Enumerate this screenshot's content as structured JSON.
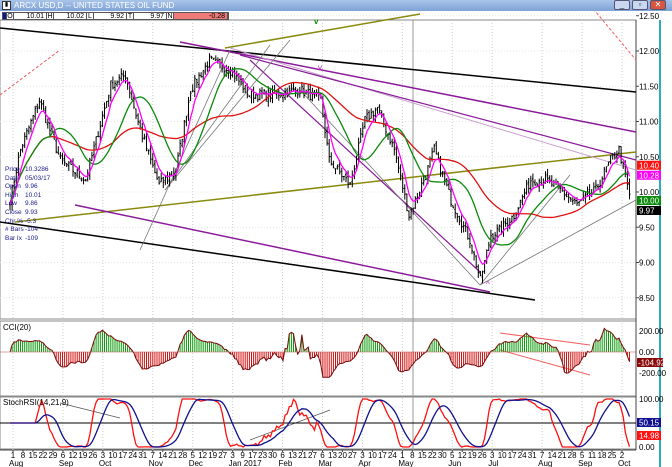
{
  "window": {
    "title": "ARCX USD,D -- UNITED STATES OIL FUND",
    "minimize_icon": "minimize-icon",
    "restore_icon": "restore-icon",
    "close_icon": "close-icon"
  },
  "toolbar": {
    "fields": [
      {
        "key": "O",
        "value": "10.01"
      },
      {
        "key": "H",
        "value": "10.02"
      },
      {
        "key": "L",
        "value": "9.92"
      },
      {
        "key": "T",
        "value": "9.97"
      },
      {
        "key": "N",
        "value": "-0.28"
      }
    ]
  },
  "info_box": [
    {
      "label": "Price",
      "value": "10.3286"
    },
    {
      "label": "Date",
      "value": "05/03/17"
    },
    {
      "label": "Open",
      "value": "9.96"
    },
    {
      "label": "High",
      "value": "10.01"
    },
    {
      "label": "Low",
      "value": "9.86"
    },
    {
      "label": "Close",
      "value": "9.93"
    },
    {
      "label": "Chr %",
      "value": "-5.3"
    },
    {
      "label": "# Bars",
      "value": "-104"
    },
    {
      "label": "Bar Ix",
      "value": "-109"
    }
  ],
  "colors": {
    "ma_long": "#e01010",
    "ma_mid": "#0a8a0a",
    "ma_short": "#ff00ff",
    "cci_pos": "#0a9a0a",
    "cci_neg": "#d01010",
    "stoch_k": "#ff1010",
    "stoch_d": "#101090",
    "channel": "#000000",
    "olive": "#8a8a10",
    "purple": "#8a1a9a"
  },
  "chart_data": {
    "type": "line",
    "title": "ARCX USD,D -- UNITED STATES OIL FUND",
    "price_axis": {
      "ticks": [
        "12.50",
        "12.00",
        "11.50",
        "11.00",
        "10.50",
        "10.00",
        "9.50",
        "9.00",
        "8.50"
      ],
      "ylim": [
        8.35,
        12.55
      ]
    },
    "price_path": [
      [
        0,
        9.89
      ],
      [
        5,
        10.6
      ],
      [
        14,
        11.3
      ],
      [
        24,
        10.45
      ],
      [
        36,
        10.17
      ],
      [
        48,
        11.52
      ],
      [
        55,
        11.66
      ],
      [
        62,
        10.88
      ],
      [
        71,
        10.1
      ],
      [
        79,
        10.31
      ],
      [
        86,
        11.45
      ],
      [
        95,
        11.87
      ],
      [
        105,
        11.73
      ],
      [
        114,
        11.38
      ],
      [
        124,
        11.38
      ],
      [
        138,
        11.45
      ],
      [
        148,
        11.3
      ],
      [
        152,
        10.45
      ],
      [
        162,
        10.1
      ],
      [
        169,
        11.02
      ],
      [
        175,
        11.19
      ],
      [
        183,
        10.6
      ],
      [
        190,
        9.67
      ],
      [
        198,
        10.24
      ],
      [
        202,
        10.6
      ],
      [
        210,
        9.89
      ],
      [
        219,
        9.32
      ],
      [
        224,
        8.75
      ],
      [
        229,
        9.39
      ],
      [
        233,
        9.46
      ],
      [
        240,
        9.67
      ],
      [
        248,
        10.17
      ],
      [
        255,
        10.17
      ],
      [
        262,
        10.03
      ],
      [
        270,
        9.82
      ],
      [
        279,
        10.03
      ],
      [
        286,
        10.45
      ],
      [
        290,
        10.6
      ],
      [
        295,
        9.97
      ]
    ],
    "price_tags": [
      {
        "value": "10.40",
        "series": "ma_long"
      },
      {
        "value": "10.28",
        "series": "ma_short"
      },
      {
        "value": "10.00",
        "series": "ma_mid"
      },
      {
        "value": "9.97",
        "series": "last"
      }
    ],
    "wave_labels": [
      "v",
      "v",
      "^"
    ],
    "cci": {
      "title": "CCI(20)",
      "ticks": [
        "200.00",
        "0.00",
        "-200.00"
      ],
      "last": "-104.92"
    },
    "stochrsi": {
      "title": "StochRSI(14,21,9)",
      "ticks": [
        "100.00",
        "0.00"
      ],
      "last_d": "50.15",
      "last_k": "14.98"
    },
    "x_axis": [
      {
        "month": "Aug",
        "days": [
          "1",
          "8",
          "15",
          "22",
          "29"
        ]
      },
      {
        "month": "Sep",
        "days": [
          "6",
          "12",
          "19",
          "26"
        ]
      },
      {
        "month": "Oct",
        "days": [
          "3",
          "10",
          "17",
          "24",
          "31"
        ]
      },
      {
        "month": "Nov",
        "days": [
          "7",
          "14",
          "21",
          "28"
        ]
      },
      {
        "month": "Dec",
        "days": [
          "5",
          "12",
          "19",
          "27"
        ]
      },
      {
        "month": "Jan 2017",
        "days": [
          "3",
          "9",
          "17",
          "23",
          "30"
        ]
      },
      {
        "month": "Feb",
        "days": [
          "6",
          "13",
          "21",
          "27"
        ]
      },
      {
        "month": "Mar",
        "days": [
          "6",
          "13",
          "20",
          "27"
        ]
      },
      {
        "month": "Apr",
        "days": [
          "3",
          "10",
          "17",
          "24"
        ]
      },
      {
        "month": "May",
        "days": [
          "1",
          "8",
          "15",
          "22",
          "30"
        ]
      },
      {
        "month": "Jun",
        "days": [
          "5",
          "12",
          "19",
          "26"
        ]
      },
      {
        "month": "Jul",
        "days": [
          "3",
          "10",
          "17",
          "24",
          "31"
        ]
      },
      {
        "month": "Aug",
        "days": [
          "7",
          "14",
          "21",
          "28"
        ]
      },
      {
        "month": "Sep",
        "days": [
          "5",
          "11",
          "18",
          "25"
        ]
      },
      {
        "month": "Oct",
        "days": [
          "2"
        ]
      }
    ]
  }
}
